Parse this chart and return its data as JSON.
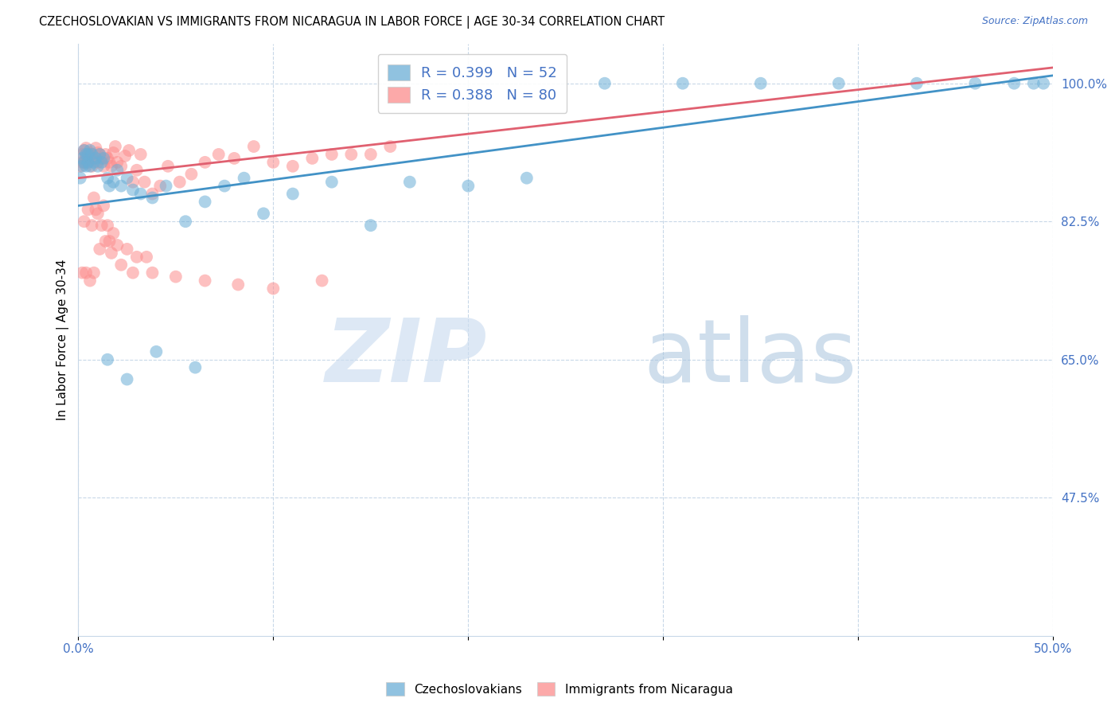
{
  "title": "CZECHOSLOVAKIAN VS IMMIGRANTS FROM NICARAGUA IN LABOR FORCE | AGE 30-34 CORRELATION CHART",
  "source": "Source: ZipAtlas.com",
  "ylabel": "In Labor Force | Age 30-34",
  "xlim": [
    0.0,
    0.5
  ],
  "ylim": [
    0.3,
    1.05
  ],
  "xtick_positions": [
    0.0,
    0.1,
    0.2,
    0.3,
    0.4,
    0.5
  ],
  "xticklabels": [
    "0.0%",
    "",
    "",
    "",
    "",
    "50.0%"
  ],
  "yticks_right": [
    0.475,
    0.65,
    0.825,
    1.0
  ],
  "yticklabels_right": [
    "47.5%",
    "65.0%",
    "82.5%",
    "100.0%"
  ],
  "blue_R": 0.399,
  "blue_N": 52,
  "pink_R": 0.388,
  "pink_N": 80,
  "blue_color": "#6baed6",
  "pink_color": "#fc8d8d",
  "blue_line_color": "#4292c6",
  "pink_line_color": "#e06070",
  "legend_label_blue": "Czechoslovakians",
  "legend_label_pink": "Immigrants from Nicaragua",
  "blue_x": [
    0.001,
    0.002,
    0.002,
    0.003,
    0.003,
    0.004,
    0.004,
    0.005,
    0.005,
    0.006,
    0.006,
    0.007,
    0.008,
    0.009,
    0.01,
    0.011,
    0.012,
    0.013,
    0.015,
    0.016,
    0.018,
    0.02,
    0.022,
    0.025,
    0.028,
    0.032,
    0.038,
    0.045,
    0.055,
    0.065,
    0.075,
    0.085,
    0.095,
    0.11,
    0.13,
    0.15,
    0.17,
    0.2,
    0.23,
    0.27,
    0.31,
    0.35,
    0.39,
    0.43,
    0.46,
    0.48,
    0.49,
    0.495,
    0.015,
    0.025,
    0.04,
    0.06
  ],
  "blue_y": [
    0.88,
    0.895,
    0.905,
    0.915,
    0.9,
    0.91,
    0.895,
    0.91,
    0.9,
    0.915,
    0.895,
    0.91,
    0.9,
    0.905,
    0.895,
    0.91,
    0.9,
    0.905,
    0.88,
    0.87,
    0.875,
    0.89,
    0.87,
    0.88,
    0.865,
    0.86,
    0.855,
    0.87,
    0.825,
    0.85,
    0.87,
    0.88,
    0.835,
    0.86,
    0.875,
    0.82,
    0.875,
    0.87,
    0.88,
    1.0,
    1.0,
    1.0,
    1.0,
    1.0,
    1.0,
    1.0,
    1.0,
    1.0,
    0.65,
    0.625,
    0.66,
    0.64
  ],
  "pink_x": [
    0.001,
    0.002,
    0.002,
    0.003,
    0.003,
    0.004,
    0.004,
    0.005,
    0.005,
    0.006,
    0.006,
    0.007,
    0.007,
    0.008,
    0.009,
    0.01,
    0.01,
    0.011,
    0.012,
    0.013,
    0.014,
    0.015,
    0.016,
    0.017,
    0.018,
    0.019,
    0.02,
    0.022,
    0.024,
    0.026,
    0.028,
    0.03,
    0.032,
    0.034,
    0.038,
    0.042,
    0.046,
    0.052,
    0.058,
    0.065,
    0.072,
    0.08,
    0.09,
    0.1,
    0.11,
    0.12,
    0.13,
    0.14,
    0.15,
    0.16,
    0.003,
    0.005,
    0.007,
    0.009,
    0.012,
    0.015,
    0.018,
    0.008,
    0.01,
    0.013,
    0.016,
    0.02,
    0.025,
    0.03,
    0.038,
    0.05,
    0.065,
    0.082,
    0.1,
    0.125,
    0.002,
    0.004,
    0.006,
    0.008,
    0.011,
    0.014,
    0.017,
    0.022,
    0.028,
    0.035
  ],
  "pink_y": [
    0.895,
    0.9,
    0.91,
    0.915,
    0.9,
    0.908,
    0.918,
    0.905,
    0.9,
    0.912,
    0.908,
    0.91,
    0.895,
    0.905,
    0.918,
    0.9,
    0.912,
    0.91,
    0.905,
    0.895,
    0.91,
    0.905,
    0.9,
    0.895,
    0.912,
    0.92,
    0.9,
    0.895,
    0.908,
    0.915,
    0.875,
    0.89,
    0.91,
    0.875,
    0.86,
    0.87,
    0.895,
    0.875,
    0.885,
    0.9,
    0.91,
    0.905,
    0.92,
    0.9,
    0.895,
    0.905,
    0.91,
    0.91,
    0.91,
    0.92,
    0.825,
    0.84,
    0.82,
    0.84,
    0.82,
    0.82,
    0.81,
    0.855,
    0.835,
    0.845,
    0.8,
    0.795,
    0.79,
    0.78,
    0.76,
    0.755,
    0.75,
    0.745,
    0.74,
    0.75,
    0.76,
    0.76,
    0.75,
    0.76,
    0.79,
    0.8,
    0.785,
    0.77,
    0.76,
    0.78
  ]
}
